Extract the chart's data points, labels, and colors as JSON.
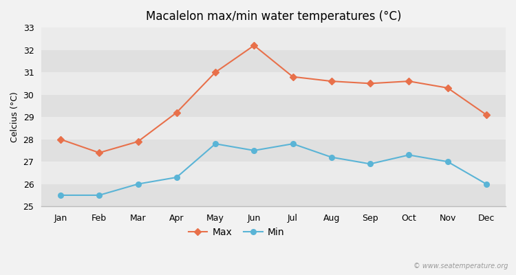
{
  "months": [
    "Jan",
    "Feb",
    "Mar",
    "Apr",
    "May",
    "Jun",
    "Jul",
    "Aug",
    "Sep",
    "Oct",
    "Nov",
    "Dec"
  ],
  "max_temps": [
    28.0,
    27.4,
    27.9,
    29.2,
    31.0,
    32.2,
    30.8,
    30.6,
    30.5,
    30.6,
    30.3,
    29.1
  ],
  "min_temps": [
    25.5,
    25.5,
    26.0,
    26.3,
    27.8,
    27.5,
    27.8,
    27.2,
    26.9,
    27.3,
    27.0,
    26.0
  ],
  "max_color": "#e8704a",
  "min_color": "#5ab4d6",
  "bg_color": "#f2f2f2",
  "band_light": "#ebebeb",
  "band_dark": "#e0e0e0",
  "title": "Macalelon max/min water temperatures (°C)",
  "ylabel": "Celcius (°C)",
  "ylim": [
    25,
    33
  ],
  "yticks": [
    25,
    26,
    27,
    28,
    29,
    30,
    31,
    32,
    33
  ],
  "watermark": "© www.seatemperature.org",
  "legend_max": "Max",
  "legend_min": "Min",
  "title_fontsize": 12,
  "label_fontsize": 9,
  "tick_fontsize": 9
}
